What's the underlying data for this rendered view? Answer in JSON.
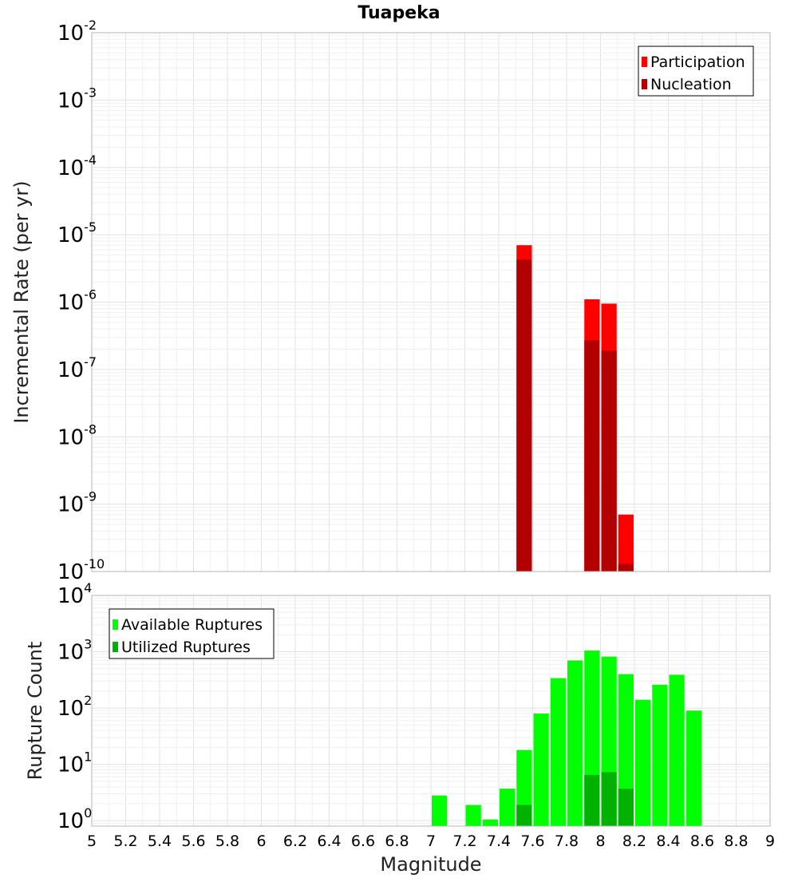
{
  "chart_data": [
    {
      "type": "bar",
      "title": "Tuapeka",
      "xlabel": "",
      "ylabel": "Incremental Rate (per yr)",
      "yscale": "log",
      "xlim": [
        5,
        9
      ],
      "ylim": [
        1e-10,
        0.01
      ],
      "legend_position": "top-right",
      "bin_width": 0.1,
      "y_ticks": [
        "10^-10",
        "10^-9",
        "10^-8",
        "10^-7",
        "10^-6",
        "10^-5",
        "10^-4",
        "10^-3",
        "10^-2"
      ],
      "series": [
        {
          "name": "Participation",
          "color": "#ff0000",
          "points": [
            {
              "x": 7.55,
              "y": 7e-06
            },
            {
              "x": 7.95,
              "y": 1.1e-06
            },
            {
              "x": 8.05,
              "y": 9.5e-07
            },
            {
              "x": 8.15,
              "y": 7e-10
            }
          ]
        },
        {
          "name": "Nucleation",
          "color": "#b20000",
          "points": [
            {
              "x": 7.55,
              "y": 4.3e-06
            },
            {
              "x": 7.95,
              "y": 2.7e-07
            },
            {
              "x": 8.05,
              "y": 1.9e-07
            },
            {
              "x": 8.15,
              "y": 1.3e-10
            }
          ]
        }
      ]
    },
    {
      "type": "bar",
      "title": "",
      "xlabel": "Magnitude",
      "ylabel": "Rupture Count",
      "yscale": "log",
      "xlim": [
        5,
        9
      ],
      "ylim": [
        0.8,
        10000
      ],
      "legend_position": "top-left",
      "bin_width": 0.1,
      "x_ticks": [
        "5",
        "5.2",
        "5.4",
        "5.6",
        "5.8",
        "6",
        "6.2",
        "6.4",
        "6.6",
        "6.8",
        "7",
        "7.2",
        "7.4",
        "7.6",
        "7.8",
        "8",
        "8.2",
        "8.4",
        "8.6",
        "8.8",
        "9"
      ],
      "y_ticks": [
        "10^0",
        "10^1",
        "10^2",
        "10^3",
        "10^4"
      ],
      "series": [
        {
          "name": "Available Ruptures",
          "color": "#00ff00",
          "points": [
            {
              "x": 7.05,
              "y": 2.8
            },
            {
              "x": 7.25,
              "y": 1.9
            },
            {
              "x": 7.35,
              "y": 1.05
            },
            {
              "x": 7.45,
              "y": 3.7
            },
            {
              "x": 7.55,
              "y": 18
            },
            {
              "x": 7.65,
              "y": 80
            },
            {
              "x": 7.75,
              "y": 340
            },
            {
              "x": 7.85,
              "y": 700
            },
            {
              "x": 7.95,
              "y": 1050
            },
            {
              "x": 8.05,
              "y": 820
            },
            {
              "x": 8.15,
              "y": 400
            },
            {
              "x": 8.25,
              "y": 140
            },
            {
              "x": 8.35,
              "y": 260
            },
            {
              "x": 8.45,
              "y": 390
            },
            {
              "x": 8.55,
              "y": 90
            }
          ]
        },
        {
          "name": "Utilized Ruptures",
          "color": "#00b200",
          "points": [
            {
              "x": 7.55,
              "y": 1.9
            },
            {
              "x": 7.95,
              "y": 6.5
            },
            {
              "x": 8.05,
              "y": 7.3
            },
            {
              "x": 8.15,
              "y": 3.7
            }
          ]
        }
      ]
    }
  ]
}
